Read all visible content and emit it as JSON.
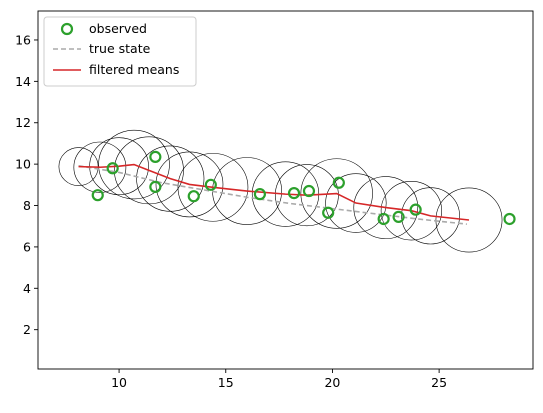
{
  "chart_data": {
    "type": "line",
    "xlim": [
      6.2,
      29.4
    ],
    "ylim": [
      0.1,
      17.4
    ],
    "xticks": [
      10,
      15,
      20,
      25
    ],
    "yticks": [
      2,
      4,
      6,
      8,
      10,
      12,
      14,
      16
    ],
    "grid": false,
    "legend_position": "top-left",
    "colors": {
      "observed": "#2ca02c",
      "true_state": "#aaaaaa",
      "filtered": "#d62728",
      "covariance": "#000000"
    },
    "series": [
      {
        "name": "observed",
        "kind": "scatter",
        "x": [
          9.0,
          9.7,
          11.7,
          11.7,
          13.5,
          14.3,
          16.6,
          18.2,
          18.9,
          19.8,
          20.3,
          22.4,
          23.1,
          23.9,
          28.3
        ],
        "y": [
          8.5,
          9.8,
          10.35,
          8.9,
          8.45,
          9.0,
          8.55,
          8.6,
          8.7,
          7.65,
          9.1,
          7.35,
          7.45,
          7.8,
          7.35
        ]
      },
      {
        "name": "true state",
        "kind": "dashed-line",
        "x": [
          8.1,
          10.0,
          12.0,
          14.0,
          16.0,
          18.0,
          20.0,
          22.0,
          24.0,
          26.3
        ],
        "y": [
          9.92,
          9.6,
          9.1,
          8.75,
          8.4,
          8.1,
          7.85,
          7.6,
          7.35,
          7.1
        ]
      },
      {
        "name": "filtered means",
        "kind": "line",
        "x": [
          8.1,
          9.1,
          10.0,
          10.7,
          11.4,
          12.4,
          13.3,
          14.4,
          16.0,
          17.8,
          18.8,
          20.2,
          21.1,
          22.5,
          23.7,
          24.6,
          26.4
        ],
        "y": [
          9.88,
          9.85,
          9.9,
          9.98,
          9.7,
          9.3,
          9.02,
          8.88,
          8.7,
          8.55,
          8.5,
          8.58,
          8.12,
          7.9,
          7.75,
          7.5,
          7.3
        ]
      }
    ],
    "covariance_circles": {
      "x": [
        8.1,
        9.1,
        10.0,
        10.7,
        11.4,
        12.4,
        13.3,
        14.4,
        16.0,
        17.8,
        18.8,
        20.2,
        21.1,
        22.5,
        23.7,
        24.6,
        26.4
      ],
      "y": [
        9.88,
        9.85,
        9.9,
        9.98,
        9.7,
        9.3,
        9.02,
        8.88,
        8.7,
        8.55,
        8.5,
        8.58,
        8.12,
        7.9,
        7.75,
        7.5,
        7.3
      ],
      "r": [
        0.92,
        1.22,
        1.38,
        1.66,
        1.62,
        1.58,
        1.57,
        1.64,
        1.62,
        1.56,
        1.48,
        1.68,
        1.42,
        1.5,
        1.42,
        1.36,
        1.55
      ]
    }
  }
}
